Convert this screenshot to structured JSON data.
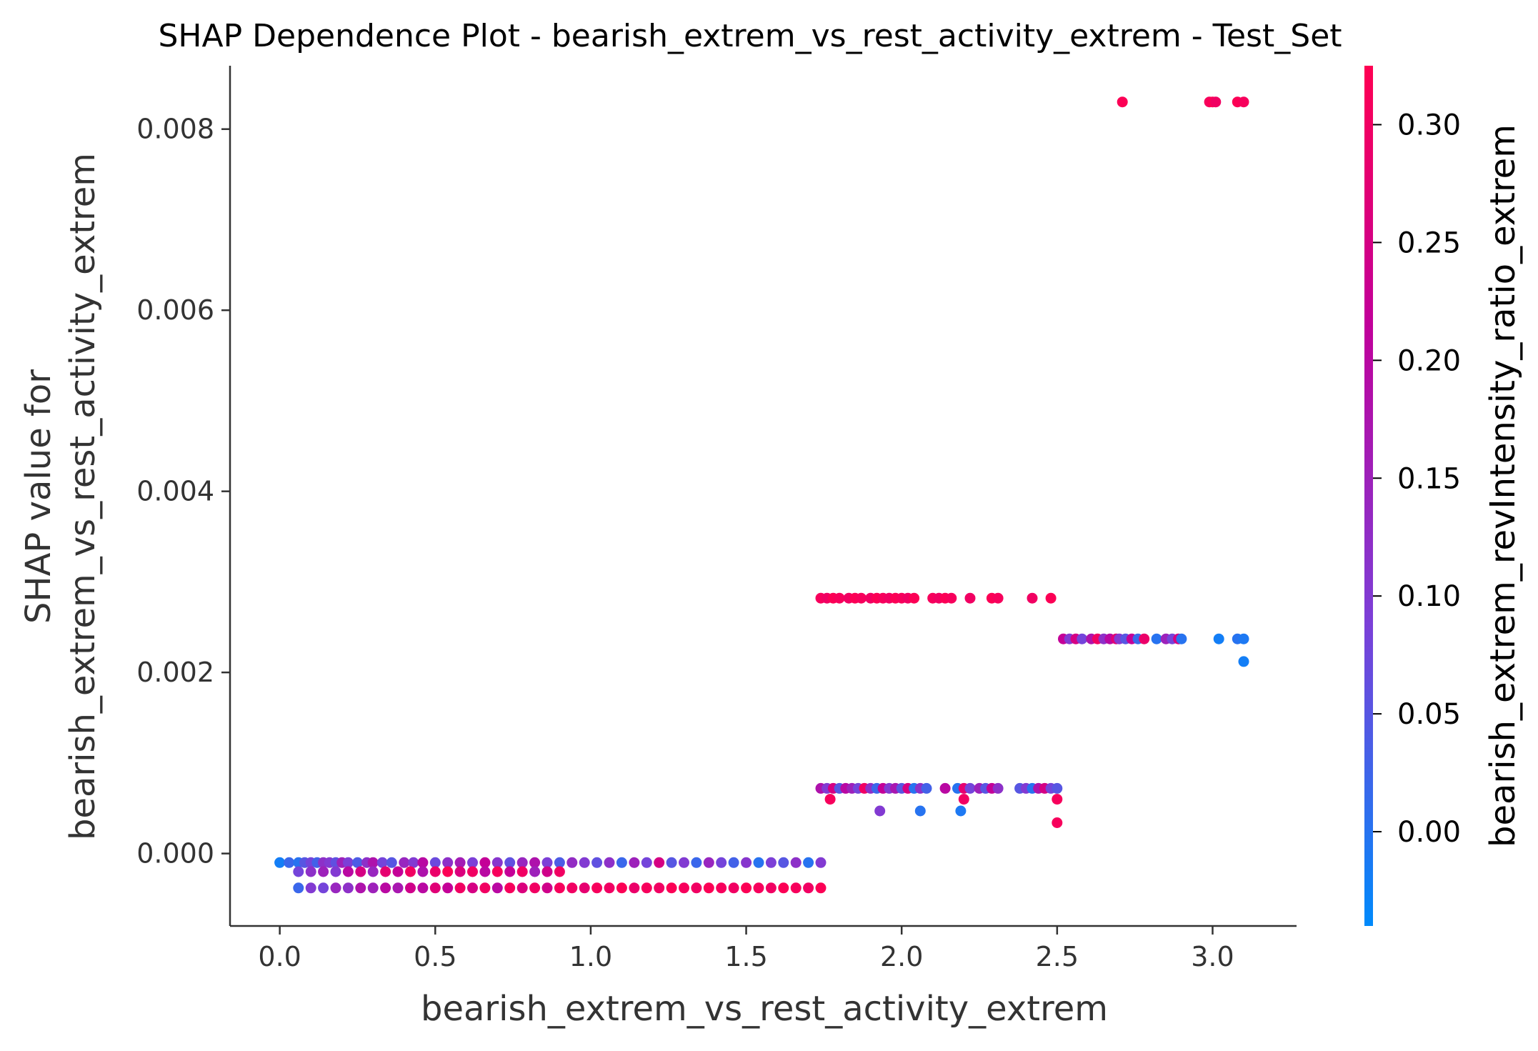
{
  "chart_data": {
    "type": "scatter",
    "title": "SHAP Dependence Plot - bearish_extrem_vs_rest_activity_extrem - Test_Set",
    "xlabel": "bearish_extrem_vs_rest_activity_extrem",
    "ylabel_line1": "SHAP value for",
    "ylabel_line2": "bearish_extrem_vs_rest_activity_extrem",
    "colorbar_label": "bearish_extrem_revIntensity_ratio_extrem",
    "xlim": [
      -0.16,
      3.27
    ],
    "ylim": [
      -0.0008,
      0.0087
    ],
    "x_ticks": [
      0.0,
      0.5,
      1.0,
      1.5,
      2.0,
      2.5,
      3.0
    ],
    "x_tick_labels": [
      "0.0",
      "0.5",
      "1.0",
      "1.5",
      "2.0",
      "2.5",
      "3.0"
    ],
    "y_ticks": [
      0.0,
      0.002,
      0.004,
      0.006,
      0.008
    ],
    "y_tick_labels": [
      "0.000",
      "0.002",
      "0.004",
      "0.006",
      "0.008"
    ],
    "color_range": [
      -0.04,
      0.325
    ],
    "color_ticks": [
      0.0,
      0.05,
      0.1,
      0.15,
      0.2,
      0.25,
      0.3
    ],
    "color_tick_labels": [
      "0.00",
      "0.05",
      "0.10",
      "0.15",
      "0.20",
      "0.25",
      "0.30"
    ],
    "colormap": [
      "#008afb",
      "#7b40d8",
      "#c1009a",
      "#ff0052"
    ],
    "grid": false,
    "series": [
      {
        "points": [
          [
            2.71,
            0.0083,
            0.32
          ],
          [
            2.99,
            0.0083,
            0.31
          ],
          [
            3.0,
            0.0083,
            0.32
          ],
          [
            3.01,
            0.0083,
            0.3
          ],
          [
            3.08,
            0.0083,
            0.32
          ],
          [
            3.1,
            0.0083,
            0.31
          ],
          [
            1.74,
            0.00282,
            0.31
          ],
          [
            1.76,
            0.00282,
            0.3
          ],
          [
            1.78,
            0.00282,
            0.32
          ],
          [
            1.8,
            0.00282,
            0.31
          ],
          [
            1.83,
            0.00282,
            0.3
          ],
          [
            1.85,
            0.00282,
            0.32
          ],
          [
            1.87,
            0.00282,
            0.31
          ],
          [
            1.9,
            0.00282,
            0.3
          ],
          [
            1.92,
            0.00282,
            0.32
          ],
          [
            1.94,
            0.00282,
            0.31
          ],
          [
            1.96,
            0.00282,
            0.3
          ],
          [
            1.98,
            0.00282,
            0.32
          ],
          [
            2.0,
            0.00282,
            0.31
          ],
          [
            2.02,
            0.00282,
            0.3
          ],
          [
            2.04,
            0.00282,
            0.32
          ],
          [
            2.1,
            0.00282,
            0.31
          ],
          [
            2.12,
            0.00282,
            0.3
          ],
          [
            2.14,
            0.00282,
            0.32
          ],
          [
            2.16,
            0.00282,
            0.31
          ],
          [
            2.22,
            0.00282,
            0.3
          ],
          [
            2.29,
            0.00282,
            0.32
          ],
          [
            2.31,
            0.00282,
            0.31
          ],
          [
            2.42,
            0.00282,
            0.3
          ],
          [
            2.48,
            0.00282,
            0.32
          ],
          [
            2.52,
            0.00237,
            0.22
          ],
          [
            2.54,
            0.00237,
            0.1
          ],
          [
            2.56,
            0.00237,
            0.25
          ],
          [
            2.58,
            0.00237,
            0.08
          ],
          [
            2.61,
            0.00237,
            0.18
          ],
          [
            2.63,
            0.00237,
            0.3
          ],
          [
            2.65,
            0.00237,
            0.12
          ],
          [
            2.67,
            0.00237,
            0.2
          ],
          [
            2.69,
            0.00237,
            0.27
          ],
          [
            2.7,
            0.00237,
            0.1
          ],
          [
            2.72,
            0.00237,
            0.05
          ],
          [
            2.74,
            0.00237,
            0.22
          ],
          [
            2.76,
            0.00237,
            0.02
          ],
          [
            2.78,
            0.00237,
            0.29
          ],
          [
            2.82,
            0.00237,
            0.0
          ],
          [
            2.85,
            0.00237,
            0.15
          ],
          [
            2.87,
            0.00237,
            0.08
          ],
          [
            2.89,
            0.00237,
            0.25
          ],
          [
            2.9,
            0.00237,
            0.0
          ],
          [
            3.02,
            0.00237,
            -0.02
          ],
          [
            3.08,
            0.00237,
            0.0
          ],
          [
            3.1,
            0.00237,
            -0.01
          ],
          [
            3.1,
            0.00212,
            -0.02
          ],
          [
            1.74,
            0.00072,
            0.18
          ],
          [
            1.76,
            0.00072,
            0.1
          ],
          [
            1.78,
            0.00072,
            0.25
          ],
          [
            1.8,
            0.00072,
            0.05
          ],
          [
            1.82,
            0.00072,
            0.2
          ],
          [
            1.84,
            0.00072,
            0.15
          ],
          [
            1.86,
            0.00072,
            0.08
          ],
          [
            1.88,
            0.00072,
            0.3
          ],
          [
            1.9,
            0.00072,
            0.12
          ],
          [
            1.92,
            0.00072,
            0.02
          ],
          [
            1.94,
            0.00072,
            0.22
          ],
          [
            1.96,
            0.00072,
            0.1
          ],
          [
            1.98,
            0.00072,
            0.17
          ],
          [
            2.0,
            0.00072,
            0.05
          ],
          [
            2.02,
            0.00072,
            0.25
          ],
          [
            2.04,
            0.00072,
            0.0
          ],
          [
            2.06,
            0.00072,
            0.12
          ],
          [
            2.08,
            0.00072,
            0.03
          ],
          [
            2.14,
            0.00072,
            0.2
          ],
          [
            2.18,
            0.00072,
            0.0
          ],
          [
            2.2,
            0.00072,
            0.28
          ],
          [
            2.22,
            0.00072,
            0.08
          ],
          [
            2.25,
            0.00072,
            0.15
          ],
          [
            2.27,
            0.00072,
            0.05
          ],
          [
            2.29,
            0.00072,
            0.22
          ],
          [
            2.31,
            0.00072,
            0.12
          ],
          [
            2.38,
            0.00072,
            0.05
          ],
          [
            2.4,
            0.00072,
            0.1
          ],
          [
            2.42,
            0.00072,
            0.0
          ],
          [
            2.44,
            0.00072,
            0.18
          ],
          [
            2.46,
            0.00072,
            0.25
          ],
          [
            2.48,
            0.00072,
            0.08
          ],
          [
            2.5,
            0.00072,
            0.05
          ],
          [
            1.77,
            0.0006,
            0.31
          ],
          [
            2.2,
            0.0006,
            0.3
          ],
          [
            2.5,
            0.0006,
            0.31
          ],
          [
            1.93,
            0.00047,
            0.1
          ],
          [
            2.06,
            0.00047,
            0.0
          ],
          [
            2.19,
            0.00047,
            -0.01
          ],
          [
            2.5,
            0.00034,
            0.31
          ],
          [
            0.0,
            -0.0001,
            -0.02
          ],
          [
            0.03,
            -0.0001,
            0.02
          ],
          [
            0.06,
            -0.0001,
            0.0
          ],
          [
            0.08,
            -0.0001,
            0.05
          ],
          [
            0.1,
            -0.0001,
            0.08
          ],
          [
            0.12,
            -0.0001,
            0.03
          ],
          [
            0.14,
            -0.0001,
            0.12
          ],
          [
            0.16,
            -0.0001,
            0.1
          ],
          [
            0.18,
            -0.0001,
            0.06
          ],
          [
            0.2,
            -0.0001,
            0.15
          ],
          [
            0.22,
            -0.0001,
            0.09
          ],
          [
            0.25,
            -0.0001,
            0.04
          ],
          [
            0.28,
            -0.0001,
            0.12
          ],
          [
            0.3,
            -0.0001,
            0.18
          ],
          [
            0.33,
            -0.0001,
            0.08
          ],
          [
            0.36,
            -0.0001,
            0.05
          ],
          [
            0.4,
            -0.0001,
            0.14
          ],
          [
            0.43,
            -0.0001,
            0.1
          ],
          [
            0.46,
            -0.0001,
            0.2
          ],
          [
            0.5,
            -0.0001,
            0.07
          ],
          [
            0.54,
            -0.0001,
            0.12
          ],
          [
            0.58,
            -0.0001,
            0.16
          ],
          [
            0.62,
            -0.0001,
            0.09
          ],
          [
            0.66,
            -0.0001,
            0.22
          ],
          [
            0.7,
            -0.0001,
            0.11
          ],
          [
            0.74,
            -0.0001,
            0.06
          ],
          [
            0.78,
            -0.0001,
            0.14
          ],
          [
            0.82,
            -0.0001,
            0.18
          ],
          [
            0.86,
            -0.0001,
            0.09
          ],
          [
            0.9,
            -0.0001,
            0.04
          ],
          [
            0.94,
            -0.0001,
            0.13
          ],
          [
            0.98,
            -0.0001,
            0.1
          ],
          [
            1.02,
            -0.0001,
            0.06
          ],
          [
            1.06,
            -0.0001,
            0.12
          ],
          [
            1.1,
            -0.0001,
            0.02
          ],
          [
            1.14,
            -0.0001,
            0.15
          ],
          [
            1.18,
            -0.0001,
            0.08
          ],
          [
            1.22,
            -0.0001,
            0.25
          ],
          [
            1.26,
            -0.0001,
            0.05
          ],
          [
            1.3,
            -0.0001,
            0.1
          ],
          [
            1.34,
            -0.0001,
            0.02
          ],
          [
            1.38,
            -0.0001,
            0.14
          ],
          [
            1.42,
            -0.0001,
            0.08
          ],
          [
            1.46,
            -0.0001,
            0.03
          ],
          [
            1.5,
            -0.0001,
            0.11
          ],
          [
            1.54,
            -0.0001,
            0.0
          ],
          [
            1.58,
            -0.0001,
            0.09
          ],
          [
            1.62,
            -0.0001,
            0.05
          ],
          [
            1.66,
            -0.0001,
            0.12
          ],
          [
            1.7,
            -0.0001,
            0.0
          ],
          [
            1.74,
            -0.0001,
            0.1
          ],
          [
            0.06,
            -0.0002,
            0.08
          ],
          [
            0.1,
            -0.0002,
            0.12
          ],
          [
            0.14,
            -0.0002,
            0.15
          ],
          [
            0.18,
            -0.0002,
            0.1
          ],
          [
            0.22,
            -0.0002,
            0.2
          ],
          [
            0.26,
            -0.0002,
            0.25
          ],
          [
            0.3,
            -0.0002,
            0.14
          ],
          [
            0.34,
            -0.0002,
            0.28
          ],
          [
            0.38,
            -0.0002,
            0.22
          ],
          [
            0.42,
            -0.0002,
            0.3
          ],
          [
            0.46,
            -0.0002,
            0.18
          ],
          [
            0.5,
            -0.0002,
            0.29
          ],
          [
            0.54,
            -0.0002,
            0.32
          ],
          [
            0.58,
            -0.0002,
            0.26
          ],
          [
            0.62,
            -0.0002,
            0.3
          ],
          [
            0.66,
            -0.0002,
            0.2
          ],
          [
            0.7,
            -0.0002,
            0.31
          ],
          [
            0.74,
            -0.0002,
            0.22
          ],
          [
            0.78,
            -0.0002,
            0.3
          ],
          [
            0.82,
            -0.0002,
            0.15
          ],
          [
            0.86,
            -0.0002,
            0.24
          ],
          [
            0.9,
            -0.0002,
            0.3
          ],
          [
            0.06,
            -0.00038,
            0.02
          ],
          [
            0.1,
            -0.00038,
            0.1
          ],
          [
            0.14,
            -0.00038,
            0.08
          ],
          [
            0.18,
            -0.00038,
            0.14
          ],
          [
            0.22,
            -0.00038,
            0.12
          ],
          [
            0.26,
            -0.00038,
            0.18
          ],
          [
            0.3,
            -0.00038,
            0.15
          ],
          [
            0.34,
            -0.00038,
            0.2
          ],
          [
            0.38,
            -0.00038,
            0.17
          ],
          [
            0.42,
            -0.00038,
            0.24
          ],
          [
            0.46,
            -0.00038,
            0.2
          ],
          [
            0.5,
            -0.00038,
            0.27
          ],
          [
            0.54,
            -0.00038,
            0.22
          ],
          [
            0.58,
            -0.00038,
            0.3
          ],
          [
            0.62,
            -0.00038,
            0.25
          ],
          [
            0.66,
            -0.00038,
            0.3
          ],
          [
            0.7,
            -0.00038,
            0.2
          ],
          [
            0.74,
            -0.00038,
            0.31
          ],
          [
            0.78,
            -0.00038,
            0.26
          ],
          [
            0.82,
            -0.00038,
            0.3
          ],
          [
            0.86,
            -0.00038,
            0.24
          ],
          [
            0.9,
            -0.00038,
            0.31
          ],
          [
            0.94,
            -0.00038,
            0.3
          ],
          [
            0.98,
            -0.00038,
            0.28
          ],
          [
            1.02,
            -0.00038,
            0.31
          ],
          [
            1.06,
            -0.00038,
            0.3
          ],
          [
            1.1,
            -0.00038,
            0.32
          ],
          [
            1.14,
            -0.00038,
            0.29
          ],
          [
            1.18,
            -0.00038,
            0.31
          ],
          [
            1.22,
            -0.00038,
            0.3
          ],
          [
            1.26,
            -0.00038,
            0.32
          ],
          [
            1.3,
            -0.00038,
            0.31
          ],
          [
            1.34,
            -0.00038,
            0.3
          ],
          [
            1.38,
            -0.00038,
            0.32
          ],
          [
            1.42,
            -0.00038,
            0.31
          ],
          [
            1.46,
            -0.00038,
            0.3
          ],
          [
            1.5,
            -0.00038,
            0.32
          ],
          [
            1.54,
            -0.00038,
            0.31
          ],
          [
            1.58,
            -0.00038,
            0.3
          ],
          [
            1.62,
            -0.00038,
            0.32
          ],
          [
            1.66,
            -0.00038,
            0.31
          ],
          [
            1.7,
            -0.00038,
            0.3
          ],
          [
            1.74,
            -0.00038,
            0.32
          ]
        ]
      }
    ]
  }
}
